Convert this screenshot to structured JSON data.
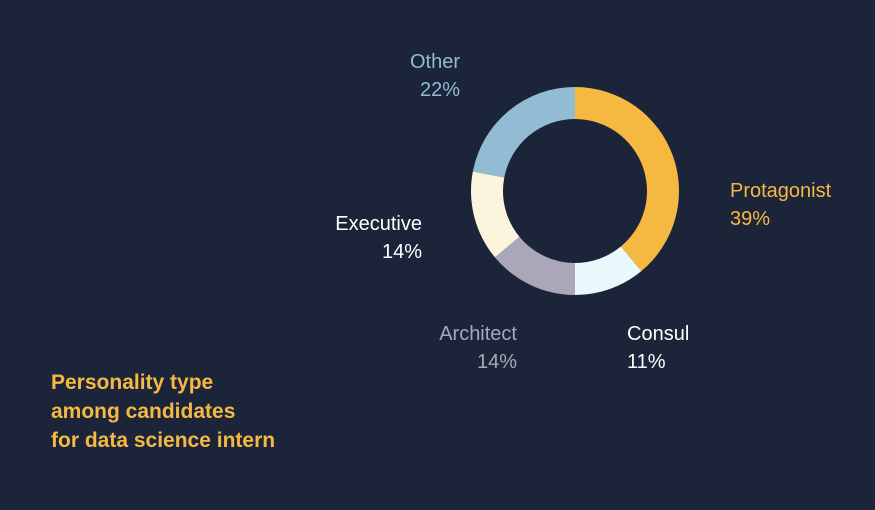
{
  "chart_data": {
    "type": "pie",
    "variant": "donut",
    "title_lines": [
      "Personality type",
      "among candidates",
      "for data science intern"
    ],
    "slices": [
      {
        "name": "Protagonist",
        "value": 39,
        "value_label": "39%",
        "color": "#f5b942"
      },
      {
        "name": "Consul",
        "value": 11,
        "value_label": "11%",
        "color": "#e9f8fb"
      },
      {
        "name": "Architect",
        "value": 14,
        "value_label": "14%",
        "color": "#a9a7b8"
      },
      {
        "name": "Executive",
        "value": 14,
        "value_label": "14%",
        "color": "#fdf4dd"
      },
      {
        "name": "Other",
        "value": 22,
        "value_label": "22%",
        "color": "#91bcd3"
      }
    ],
    "label_colors": {
      "Protagonist": "#f5b942",
      "Consul": "#ffffff",
      "Architect": "#a9a7b8",
      "Executive": "#ffffff",
      "Other": "#91bcd3"
    },
    "title_color": "#f5b942",
    "background": "#1c243a"
  }
}
